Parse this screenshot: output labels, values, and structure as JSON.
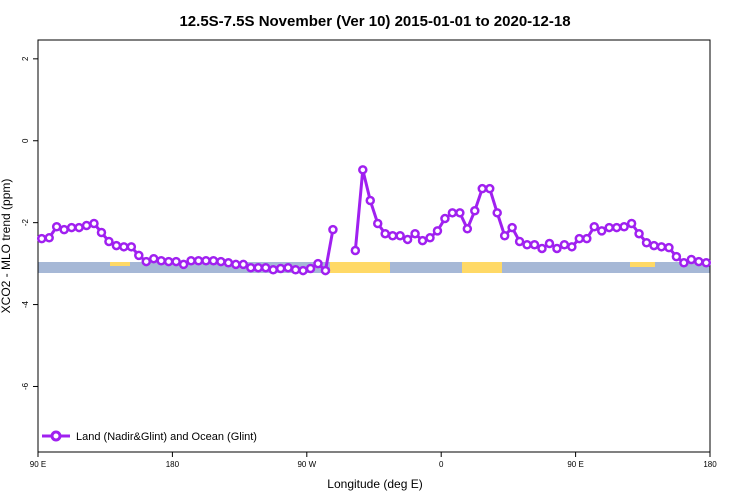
{
  "chart_data": {
    "type": "line",
    "title": "12.5S-7.5S November (Ver 10)   2015-01-01 to 2020-12-18",
    "x_label": "Longitude (deg E)",
    "y_label": "XCO2 - MLO trend (ppm)",
    "xlim": [
      90,
      540
    ],
    "ylim": [
      -7.6,
      2.46
    ],
    "xticks": [
      {
        "value": 90,
        "label": "90 E"
      },
      180,
      {
        "value": 270,
        "label": "90 W"
      },
      {
        "value": 360,
        "label": "0"
      },
      {
        "value": 450,
        "label": "90 E"
      },
      {
        "value": 540,
        "label": "180"
      }
    ],
    "yticks": [
      -6,
      -4,
      -2,
      0,
      2
    ],
    "legend": "bottom-left",
    "x": [
      92.5,
      97.5,
      102.5,
      107.5,
      112.5,
      117.5,
      122.5,
      127.5,
      132.5,
      137.5,
      142.5,
      147.5,
      152.5,
      157.5,
      162.5,
      167.5,
      172.5,
      177.5,
      182.5,
      187.5,
      192.5,
      197.5,
      202.5,
      207.5,
      212.5,
      217.5,
      222.5,
      227.5,
      232.5,
      237.5,
      242.5,
      247.5,
      252.5,
      257.5,
      262.5,
      267.5,
      272.5,
      277.5,
      282.5,
      287.5,
      292.5,
      297.5,
      302.5,
      307.5,
      312.5,
      317.5,
      322.5,
      327.5,
      332.5,
      337.5,
      342.5,
      347.5,
      352.5,
      357.5,
      362.5,
      367.5,
      372.5,
      377.5,
      382.5,
      387.5,
      392.5,
      397.5,
      402.5,
      407.5,
      412.5,
      417.5,
      422.5,
      427.5,
      432.5,
      437.5,
      442.5,
      447.5,
      452.5,
      457.5,
      462.5,
      467.5,
      472.5,
      477.5,
      482.5,
      487.5,
      492.5,
      497.5,
      502.5,
      507.5,
      512.5,
      517.5,
      522.5,
      527.5,
      532.5,
      537.5
    ],
    "series": [
      {
        "name": "Land (Nadir&Glint) and Ocean (Glint)",
        "color": "#a020f0",
        "values": [
          -2.39,
          -2.37,
          -2.1,
          -2.17,
          -2.12,
          -2.12,
          -2.07,
          -2.02,
          -2.24,
          -2.46,
          -2.56,
          -2.59,
          -2.59,
          -2.8,
          -2.95,
          -2.88,
          -2.93,
          -2.95,
          -2.95,
          -3.02,
          -2.93,
          -2.93,
          -2.93,
          -2.93,
          -2.95,
          -2.98,
          -3.02,
          -3.02,
          -3.1,
          -3.1,
          -3.1,
          -3.15,
          -3.12,
          -3.1,
          -3.15,
          -3.17,
          -3.12,
          -3.0,
          -3.17,
          -2.17,
          null,
          null,
          -2.68,
          -0.71,
          -1.46,
          -2.02,
          -2.27,
          -2.32,
          -2.32,
          -2.41,
          -2.27,
          -2.44,
          -2.37,
          -2.2,
          -1.9,
          -1.76,
          -1.76,
          -2.15,
          -1.71,
          -1.17,
          -1.17,
          -1.76,
          -2.32,
          -2.12,
          -2.46,
          -2.54,
          -2.54,
          -2.63,
          -2.51,
          -2.63,
          -2.54,
          -2.59,
          -2.39,
          -2.39,
          -2.1,
          -2.2,
          -2.12,
          -2.12,
          -2.1,
          -2.02,
          -2.27,
          -2.49,
          -2.56,
          -2.59,
          -2.61,
          -2.83,
          -2.98,
          -2.9,
          -2.95,
          -2.98
        ]
      }
    ]
  }
}
